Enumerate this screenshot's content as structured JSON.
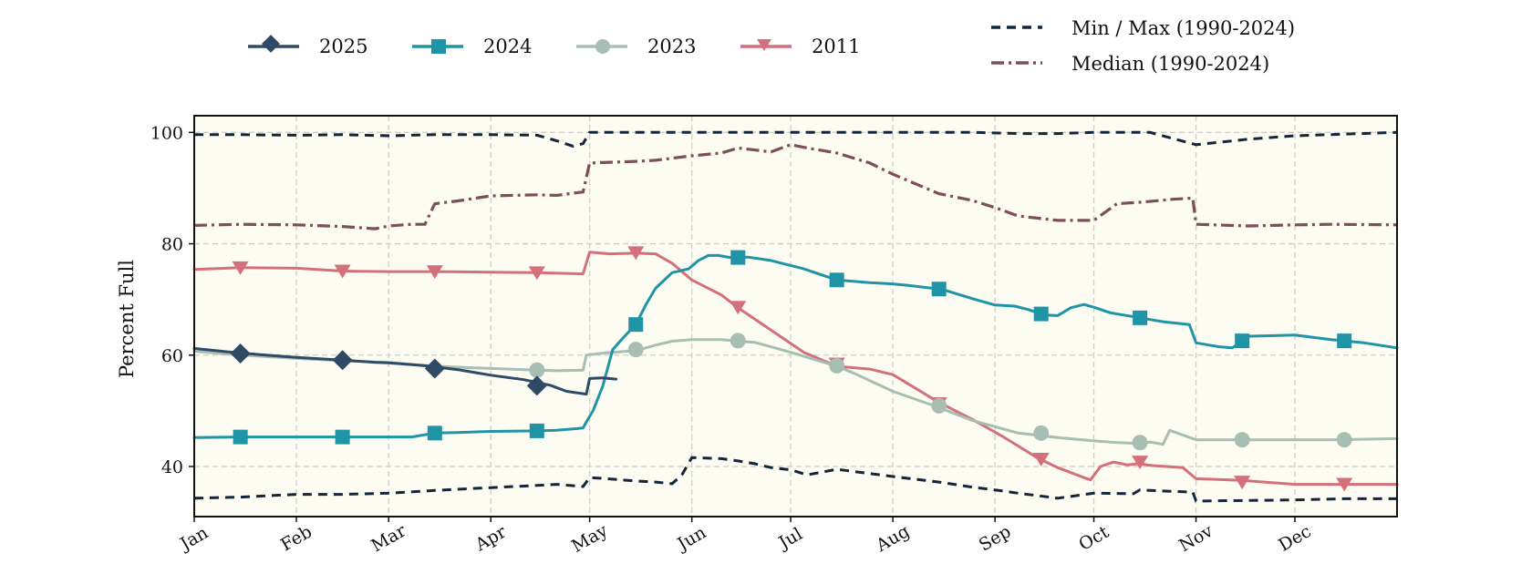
{
  "chart_data": {
    "type": "line",
    "ylabel": "Percent Full",
    "ylim": [
      31,
      103
    ],
    "yticks": [
      40,
      60,
      80,
      100
    ],
    "xlim": [
      0,
      365
    ],
    "month_ticks": [
      {
        "label": "Jan",
        "day": 0
      },
      {
        "label": "Feb",
        "day": 31
      },
      {
        "label": "Mar",
        "day": 59
      },
      {
        "label": "Apr",
        "day": 90
      },
      {
        "label": "May",
        "day": 120
      },
      {
        "label": "Jun",
        "day": 151
      },
      {
        "label": "Jul",
        "day": 181
      },
      {
        "label": "Aug",
        "day": 212
      },
      {
        "label": "Sep",
        "day": 243
      },
      {
        "label": "Oct",
        "day": 273
      },
      {
        "label": "Nov",
        "day": 304
      },
      {
        "label": "Dec",
        "day": 334
      }
    ],
    "grid": true,
    "legend_position": "top",
    "series": [
      {
        "name": "2025",
        "color": "#2e4a66",
        "marker": "diamond",
        "style": "solid",
        "x": [
          0,
          10,
          20,
          31,
          45,
          55,
          59,
          70,
          80,
          90,
          100,
          108,
          113,
          119,
          120,
          124,
          128
        ],
        "y": [
          61.2,
          60.6,
          60.1,
          59.6,
          59.1,
          58.7,
          58.6,
          58.1,
          57.4,
          56.4,
          55.6,
          54.6,
          53.5,
          53.0,
          55.8,
          55.9,
          55.7
        ],
        "markers_x": [
          14,
          45,
          73,
          104
        ],
        "markers_y": [
          60.3,
          59.1,
          57.6,
          54.5
        ]
      },
      {
        "name": "2024",
        "color": "#1f94a6",
        "marker": "square",
        "style": "solid",
        "x": [
          0,
          14,
          31,
          45,
          59,
          62,
          66,
          73,
          80,
          90,
          104,
          110,
          118,
          119,
          121,
          124,
          127,
          130,
          134,
          137,
          140,
          145,
          150,
          153,
          156,
          159,
          163,
          168,
          175,
          185,
          195,
          205,
          212,
          217,
          227,
          237,
          243,
          249,
          253,
          258,
          262,
          266,
          270,
          273,
          278,
          286,
          294,
          302,
          304,
          311,
          315,
          320,
          334,
          345,
          355,
          365
        ],
        "y": [
          45.2,
          45.3,
          45.3,
          45.3,
          45.3,
          45.3,
          45.3,
          46.0,
          46.1,
          46.3,
          46.4,
          46.5,
          46.9,
          48.0,
          50.0,
          54.5,
          61.0,
          63.0,
          65.5,
          69.0,
          72.0,
          74.8,
          75.5,
          77.0,
          77.9,
          77.9,
          77.5,
          77.6,
          77.0,
          75.5,
          73.5,
          73.0,
          72.8,
          72.5,
          71.8,
          70.0,
          69.0,
          68.8,
          68.2,
          67.2,
          67.1,
          68.5,
          69.1,
          68.6,
          67.6,
          66.8,
          66.0,
          65.5,
          62.2,
          61.5,
          61.3,
          63.4,
          63.6,
          62.8,
          62.2,
          61.3
        ]
      },
      {
        "name": "2023",
        "color": "#a8bdb3",
        "marker": "circle",
        "style": "solid",
        "x": [
          0,
          14,
          31,
          45,
          59,
          73,
          90,
          104,
          110,
          118,
          119,
          125,
          134,
          140,
          145,
          151,
          160,
          165,
          170,
          175,
          181,
          195,
          200,
          212,
          225,
          236,
          250,
          262,
          273,
          280,
          288,
          290,
          294,
          296,
          304,
          320,
          334,
          345,
          365
        ],
        "y": [
          60.7,
          60.0,
          59.4,
          59.0,
          58.7,
          58.0,
          57.6,
          57.3,
          57.2,
          57.3,
          60.0,
          60.4,
          60.8,
          61.8,
          62.5,
          62.8,
          62.8,
          62.5,
          62.3,
          61.5,
          60.5,
          58.0,
          56.8,
          53.5,
          50.8,
          48.3,
          46.0,
          45.2,
          44.6,
          44.3,
          44.1,
          44.4,
          44.0,
          46.5,
          44.8,
          44.8,
          44.8,
          44.8,
          45.0
        ],
        "markers_x": [
          104,
          134,
          165,
          195,
          226,
          257,
          287,
          318,
          349
        ],
        "markers_y": [
          57.3,
          61.0,
          62.6,
          58.1,
          50.9,
          46.0,
          44.3,
          44.8,
          44.8
        ]
      },
      {
        "name": "2011",
        "color": "#d4707a",
        "marker": "triangle_down",
        "style": "solid",
        "x": [
          0,
          14,
          31,
          45,
          59,
          73,
          90,
          104,
          118,
          120,
          126,
          134,
          140,
          145,
          151,
          160,
          165,
          175,
          185,
          195,
          205,
          212,
          226,
          236,
          245,
          256,
          262,
          270,
          272,
          275,
          279,
          283,
          287,
          290,
          300,
          304,
          318,
          334,
          349,
          365
        ],
        "y": [
          75.4,
          75.7,
          75.6,
          75.1,
          75.0,
          75.0,
          74.9,
          74.8,
          74.6,
          78.5,
          78.2,
          78.3,
          78.2,
          76.5,
          73.5,
          70.8,
          68.5,
          64.5,
          60.5,
          58.0,
          57.5,
          56.5,
          51.5,
          48.5,
          45.5,
          41.5,
          39.8,
          38.0,
          37.6,
          40.0,
          40.8,
          40.3,
          40.5,
          40.2,
          39.8,
          37.8,
          37.5,
          36.8,
          36.8,
          36.8
        ],
        "markers_x": [
          14,
          45,
          73,
          104,
          134,
          165,
          195,
          226,
          257,
          287,
          318,
          349
        ],
        "markers_y": [
          75.7,
          75.1,
          75.0,
          74.8,
          78.4,
          68.6,
          58.4,
          51.3,
          41.3,
          40.8,
          37.2,
          36.8
        ]
      },
      {
        "name": "Min / Max (1990-2024)",
        "color": "#14253a",
        "style": "dashed",
        "x": [
          0,
          14,
          31,
          45,
          59,
          73,
          90,
          104,
          110,
          115,
          118,
          120,
          140,
          145,
          151,
          165,
          175,
          185,
          195,
          205,
          212,
          226,
          236,
          243,
          250,
          262,
          273,
          290,
          304,
          320,
          334,
          365
        ],
        "y": [
          99.6,
          99.6,
          99.5,
          99.6,
          99.4,
          99.6,
          99.6,
          99.5,
          98.5,
          97.5,
          98.0,
          100,
          100,
          100,
          100,
          100,
          100,
          100,
          100,
          100,
          100,
          100,
          100,
          99.9,
          99.8,
          99.8,
          100,
          100,
          97.8,
          98.8,
          99.4,
          100
        ],
        "lower_x": [
          0,
          14,
          31,
          45,
          59,
          73,
          90,
          104,
          110,
          118,
          120,
          125,
          134,
          140,
          145,
          148,
          151,
          160,
          165,
          170,
          175,
          181,
          186,
          195,
          212,
          226,
          236,
          243,
          250,
          262,
          273,
          285,
          287,
          290,
          303,
          304,
          320,
          334,
          349,
          365
        ],
        "lower_y": [
          34.3,
          34.5,
          35.0,
          35.0,
          35.2,
          35.7,
          36.2,
          36.6,
          36.8,
          36.4,
          38.0,
          37.8,
          37.4,
          37.2,
          36.9,
          38.5,
          41.6,
          41.4,
          41.0,
          40.5,
          39.8,
          39.4,
          38.5,
          39.5,
          38.2,
          37.2,
          36.3,
          35.8,
          35.2,
          34.3,
          35.2,
          35.1,
          35.8,
          35.7,
          35.4,
          33.8,
          33.9,
          34.0,
          34.2,
          34.2
        ]
      },
      {
        "name": "Median (1990-2024)",
        "color": "#7b4e58",
        "style": "dashdot",
        "x": [
          0,
          14,
          31,
          45,
          55,
          59,
          66,
          70,
          73,
          80,
          90,
          104,
          110,
          118,
          120,
          134,
          140,
          151,
          160,
          165,
          175,
          181,
          186,
          195,
          205,
          212,
          226,
          236,
          243,
          250,
          262,
          273,
          280,
          288,
          297,
          303,
          304,
          320,
          334,
          345,
          365
        ],
        "y": [
          83.3,
          83.5,
          83.4,
          83.1,
          82.7,
          83.2,
          83.5,
          83.5,
          87.2,
          87.7,
          88.6,
          88.8,
          88.7,
          89.3,
          94.5,
          94.8,
          95.0,
          95.8,
          96.3,
          97.2,
          96.5,
          97.8,
          97.2,
          96.3,
          94.5,
          92.5,
          89.0,
          87.8,
          86.5,
          85.0,
          84.2,
          84.2,
          87.2,
          87.5,
          88.0,
          88.2,
          83.5,
          83.2,
          83.4,
          83.5,
          83.4
        ]
      }
    ]
  }
}
